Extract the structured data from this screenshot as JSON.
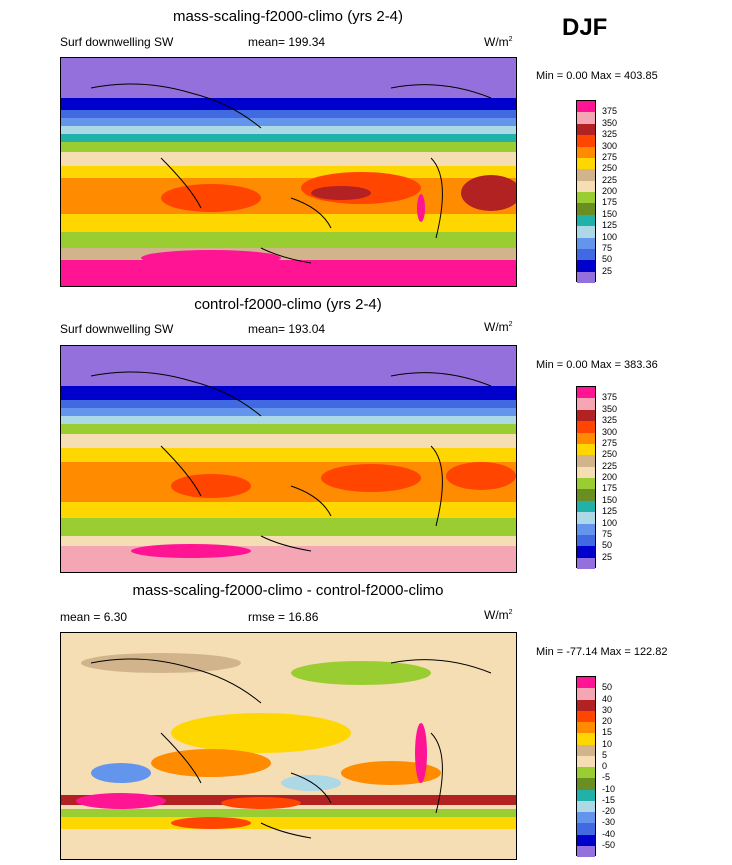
{
  "season": "DJF",
  "panels": [
    {
      "title": "mass-scaling-f2000-climo (yrs 2-4)",
      "left_label": "Surf downwelling SW",
      "center_label": "mean= 199.34",
      "units": "W/m",
      "units_sup": "2",
      "minmax": "Min =   0.00 Max = 403.85",
      "colorbar": {
        "labels": [
          "375",
          "350",
          "325",
          "300",
          "275",
          "250",
          "225",
          "200",
          "175",
          "150",
          "125",
          "100",
          "75",
          "50",
          "25"
        ],
        "colors": [
          "#ff1493",
          "#f4a6b5",
          "#b22222",
          "#ff4500",
          "#ff8c00",
          "#ffd700",
          "#d2b48c",
          "#f5deb3",
          "#9acd32",
          "#6b8e23",
          "#20b2aa",
          "#add8e6",
          "#6495ed",
          "#4169e1",
          "#0000cd",
          "#9370db"
        ]
      }
    },
    {
      "title": "control-f2000-climo (yrs 2-4)",
      "left_label": "Surf downwelling SW",
      "center_label": "mean= 193.04",
      "units": "W/m",
      "units_sup": "2",
      "minmax": "Min =   0.00 Max = 383.36",
      "colorbar": {
        "labels": [
          "375",
          "350",
          "325",
          "300",
          "275",
          "250",
          "225",
          "200",
          "175",
          "150",
          "125",
          "100",
          "75",
          "50",
          "25"
        ],
        "colors": [
          "#ff1493",
          "#f4a6b5",
          "#b22222",
          "#ff4500",
          "#ff8c00",
          "#ffd700",
          "#d2b48c",
          "#f5deb3",
          "#9acd32",
          "#6b8e23",
          "#20b2aa",
          "#add8e6",
          "#6495ed",
          "#4169e1",
          "#0000cd",
          "#9370db"
        ]
      }
    },
    {
      "title": "mass-scaling-f2000-climo - control-f2000-climo",
      "left_label": "mean =   6.30",
      "center_label": "rmse =  16.86",
      "units": "W/m",
      "units_sup": "2",
      "minmax": "Min = -77.14 Max = 122.82",
      "colorbar": {
        "labels": [
          "50",
          "40",
          "30",
          "20",
          "15",
          "10",
          "5",
          "0",
          "-5",
          "-10",
          "-15",
          "-20",
          "-30",
          "-40",
          "-50"
        ],
        "colors": [
          "#ff1493",
          "#f4a6b5",
          "#b22222",
          "#ff4500",
          "#ff8c00",
          "#ffd700",
          "#d2b48c",
          "#f5deb3",
          "#9acd32",
          "#6b8e23",
          "#20b2aa",
          "#add8e6",
          "#6495ed",
          "#4169e1",
          "#0000cd",
          "#9370db"
        ]
      }
    }
  ]
}
